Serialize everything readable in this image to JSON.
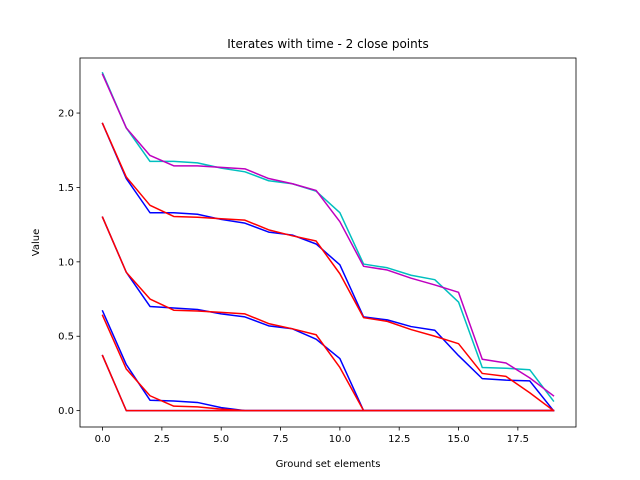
{
  "chart_data": {
    "type": "line",
    "title": "Iterates with time - 2 close points",
    "xlabel": "Ground set elements",
    "ylabel": "Value",
    "xlim": [
      -0.95,
      19.95
    ],
    "ylim": [
      -0.11,
      2.37
    ],
    "xticks": [
      0,
      2.5,
      5,
      7.5,
      10,
      12.5,
      15,
      17.5
    ],
    "xtick_labels": [
      "0.0",
      "2.5",
      "5.0",
      "7.5",
      "10.0",
      "12.5",
      "15.0",
      "17.5"
    ],
    "yticks": [
      0,
      0.5,
      1,
      1.5,
      2
    ],
    "ytick_labels": [
      "0.0",
      "0.5",
      "1.0",
      "1.5",
      "2.0"
    ],
    "grid": false,
    "x": [
      0,
      1,
      2,
      3,
      4,
      5,
      6,
      7,
      8,
      9,
      10,
      11,
      12,
      13,
      14,
      15,
      16,
      17,
      18,
      19
    ],
    "series": [
      {
        "color": "#0000ff",
        "values": [
          0.37,
          0.0,
          0.0,
          0.0,
          0.0,
          0.0,
          0.0,
          0.0,
          0.0,
          0.0,
          0.0,
          0.0,
          0.0,
          0.0,
          0.0,
          0.0,
          0.0,
          0.0,
          0.0,
          0.0
        ]
      },
      {
        "color": "#ff0000",
        "values": [
          0.37,
          0.0,
          0.0,
          0.0,
          0.0,
          0.0,
          0.0,
          0.0,
          0.0,
          0.0,
          0.0,
          0.0,
          0.0,
          0.0,
          0.0,
          0.0,
          0.0,
          0.0,
          0.0,
          0.0
        ]
      },
      {
        "color": "#0000ff",
        "values": [
          0.67,
          0.31,
          0.07,
          0.065,
          0.055,
          0.02,
          0.0,
          0.0,
          0.0,
          0.0,
          0.0,
          0.0,
          0.0,
          0.0,
          0.0,
          0.0,
          0.0,
          0.0,
          0.0,
          0.0
        ]
      },
      {
        "color": "#ff0000",
        "values": [
          0.64,
          0.28,
          0.1,
          0.03,
          0.025,
          0.01,
          0.0,
          0.0,
          0.0,
          0.0,
          0.0,
          0.0,
          0.0,
          0.0,
          0.0,
          0.0,
          0.0,
          0.0,
          0.0,
          0.0
        ]
      },
      {
        "color": "#0000ff",
        "values": [
          1.3,
          0.93,
          0.7,
          0.69,
          0.68,
          0.65,
          0.63,
          0.57,
          0.55,
          0.48,
          0.35,
          0.0,
          0.0,
          0.0,
          0.0,
          0.0,
          0.0,
          0.0,
          0.0,
          0.0
        ]
      },
      {
        "color": "#ff0000",
        "values": [
          1.3,
          0.93,
          0.75,
          0.675,
          0.67,
          0.66,
          0.65,
          0.585,
          0.55,
          0.51,
          0.29,
          0.0,
          0.0,
          0.0,
          0.0,
          0.0,
          0.0,
          0.0,
          0.0,
          0.0
        ]
      },
      {
        "color": "#0000ff",
        "values": [
          1.93,
          1.56,
          1.33,
          1.33,
          1.32,
          1.285,
          1.26,
          1.2,
          1.18,
          1.12,
          0.98,
          0.63,
          0.61,
          0.565,
          0.54,
          0.37,
          0.215,
          0.205,
          0.2,
          0.0
        ]
      },
      {
        "color": "#ff0000",
        "values": [
          1.93,
          1.57,
          1.38,
          1.305,
          1.3,
          1.29,
          1.28,
          1.215,
          1.175,
          1.14,
          0.92,
          0.625,
          0.6,
          0.545,
          0.5,
          0.45,
          0.25,
          0.23,
          0.12,
          0.0
        ]
      },
      {
        "color": "#00bfbf",
        "values": [
          2.27,
          1.9,
          1.675,
          1.675,
          1.665,
          1.63,
          1.605,
          1.545,
          1.525,
          1.475,
          1.33,
          0.985,
          0.96,
          0.91,
          0.88,
          0.73,
          0.29,
          0.285,
          0.275,
          0.065
        ]
      },
      {
        "color": "#bf00bf",
        "values": [
          2.26,
          1.9,
          1.715,
          1.645,
          1.645,
          1.635,
          1.625,
          1.56,
          1.525,
          1.48,
          1.27,
          0.97,
          0.945,
          0.89,
          0.845,
          0.795,
          0.345,
          0.32,
          0.22,
          0.1
        ]
      }
    ]
  }
}
